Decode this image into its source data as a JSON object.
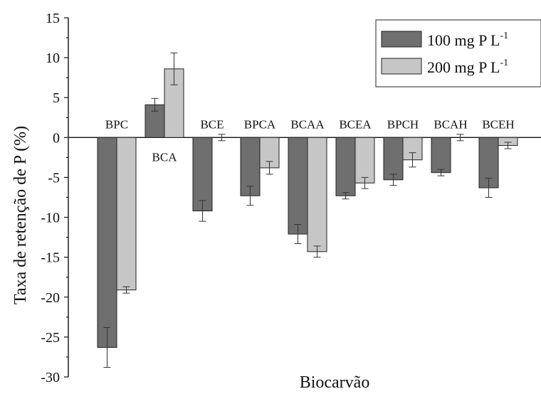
{
  "chart_data": {
    "type": "bar",
    "title": "",
    "xlabel": "Biocarvão",
    "ylabel": "Taxa de retenção de P (%)",
    "ylim": [
      -30,
      15
    ],
    "yticks": [
      15,
      10,
      5,
      0,
      -5,
      -10,
      -15,
      -20,
      -25,
      -30
    ],
    "grid": false,
    "legend_position": "top-right",
    "categories": [
      "BPC",
      "BCA",
      "BCE",
      "BPCA",
      "BCAA",
      "BCEA",
      "BPCH",
      "BCAH",
      "BCEH"
    ],
    "series": [
      {
        "name": "100 mg P L",
        "name_sup": "-1",
        "color": "#6f6f6f",
        "values": [
          -26.3,
          4.1,
          -9.2,
          -7.3,
          -12.1,
          -7.3,
          -5.3,
          -4.4,
          -6.3
        ],
        "errors": [
          2.5,
          0.8,
          1.3,
          1.2,
          1.2,
          0.4,
          0.7,
          0.4,
          1.2
        ]
      },
      {
        "name": "200 mg P L",
        "name_sup": "-1",
        "color": "#c6c6c6",
        "values": [
          -19.1,
          8.6,
          0.0,
          -3.8,
          -14.3,
          -5.7,
          -2.8,
          0.0,
          -1.0
        ],
        "errors": [
          0.4,
          2.0,
          0.4,
          0.8,
          0.7,
          0.7,
          0.9,
          0.4,
          0.4
        ]
      }
    ]
  }
}
